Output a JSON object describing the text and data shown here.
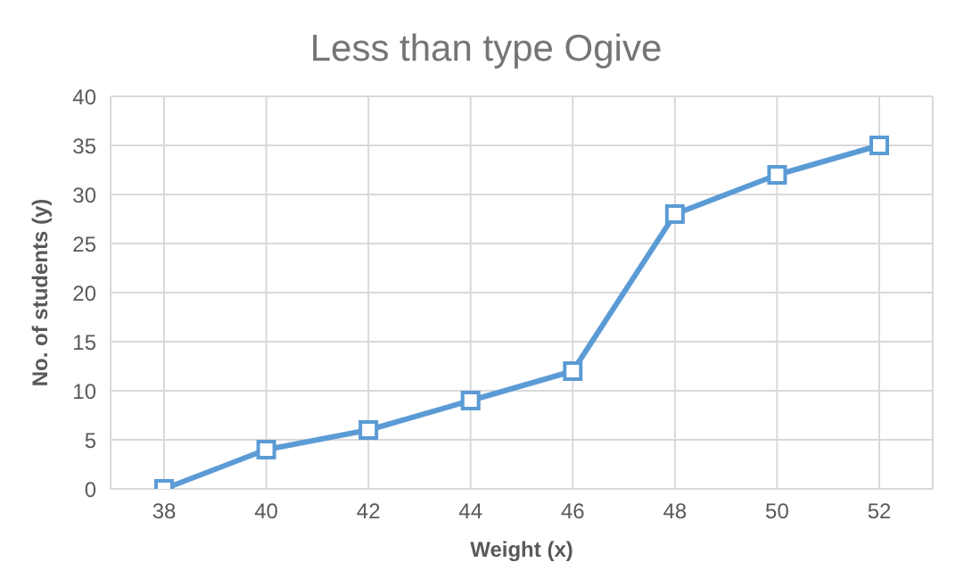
{
  "chart_data": {
    "type": "line",
    "title": "Less than type Ogive",
    "xlabel": "Weight (x)",
    "ylabel": "No. of students (y)",
    "categories": [
      "38",
      "40",
      "42",
      "44",
      "46",
      "48",
      "50",
      "52"
    ],
    "series": [
      {
        "color": "#5b9bd5",
        "values": [
          0,
          4,
          6,
          9,
          12,
          28,
          32,
          35
        ]
      }
    ],
    "ylim": [
      0,
      40
    ],
    "yticks": [
      0,
      5,
      10,
      15,
      20,
      25,
      30,
      35,
      40
    ],
    "grid": true,
    "marker": "square",
    "line_style": "solid"
  }
}
